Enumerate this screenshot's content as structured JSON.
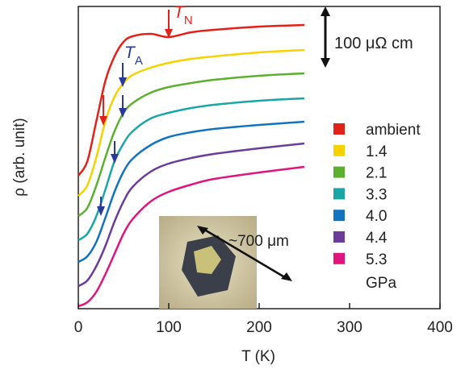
{
  "chart_data": {
    "type": "line",
    "xlabel": "T (K)",
    "ylabel": "ρ (arb. unit)",
    "xlim": [
      0,
      400
    ],
    "xticks": [
      0,
      100,
      200,
      300,
      400
    ],
    "ylim": [
      0,
      375
    ],
    "x": [
      0,
      10,
      20,
      30,
      40,
      50,
      60,
      80,
      100,
      125,
      150,
      200,
      250
    ],
    "series": [
      {
        "name": "ambient",
        "color": "#e32119",
        "values": [
          165,
          183,
          233,
          283,
          313,
          331,
          338,
          341,
          337,
          343,
          346,
          350,
          352
        ]
      },
      {
        "name": "1.4",
        "color": "#f5d200",
        "values": [
          140,
          153,
          188,
          233,
          263,
          280,
          290,
          299,
          305,
          310,
          313,
          318,
          321
        ]
      },
      {
        "name": "2.1",
        "color": "#5cb030",
        "values": [
          115,
          125,
          153,
          188,
          220,
          243,
          255,
          268,
          275,
          280,
          284,
          289,
          292
        ]
      },
      {
        "name": "3.3",
        "color": "#1aa6a6",
        "values": [
          85,
          93,
          115,
          148,
          183,
          205,
          220,
          236,
          243,
          249,
          253,
          258,
          261
        ]
      },
      {
        "name": "4.0",
        "color": "#1273c0",
        "values": [
          58,
          65,
          83,
          113,
          145,
          170,
          186,
          203,
          213,
          219,
          223,
          228,
          232
        ]
      },
      {
        "name": "4.4",
        "color": "#6b3c9a",
        "values": [
          28,
          35,
          53,
          78,
          108,
          133,
          151,
          170,
          180,
          187,
          192,
          199,
          205
        ]
      },
      {
        "name": "5.3",
        "color": "#e0157d",
        "values": [
          3,
          8,
          21,
          43,
          68,
          93,
          111,
          133,
          145,
          154,
          161,
          169,
          176
        ]
      }
    ],
    "legend_unit": "GPa",
    "annotations": {
      "tn": {
        "text": "T",
        "sub": "N"
      },
      "ta": {
        "text": "T",
        "sub": "A"
      },
      "scale_bar": "100 μΩ cm",
      "crystal_size": "~700 μm"
    }
  }
}
